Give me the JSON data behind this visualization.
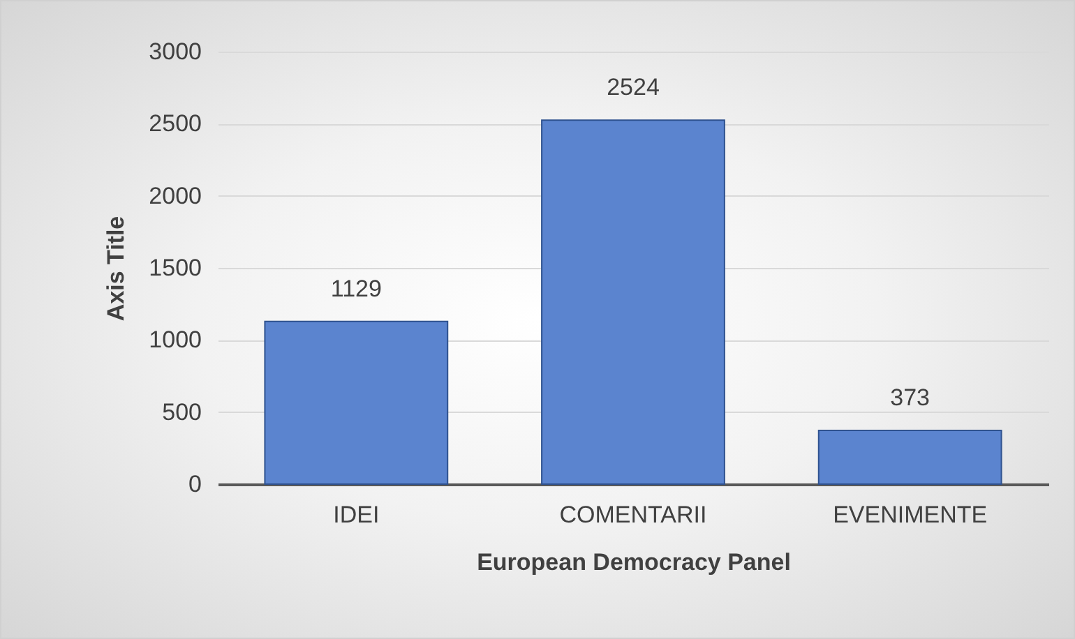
{
  "chart_data": {
    "type": "bar",
    "xlabel": "European Democracy Panel",
    "ylabel": "Axis Title",
    "categories": [
      "IDEI",
      "COMENTARII",
      "EVENIMENTE"
    ],
    "values": [
      1129,
      2524,
      373
    ],
    "color": "#5b84cf",
    "ylim": [
      0,
      3000
    ],
    "yticks": [
      0,
      500,
      1000,
      1500,
      2000,
      2500,
      3000
    ],
    "grid": "y",
    "data_labels": true
  }
}
